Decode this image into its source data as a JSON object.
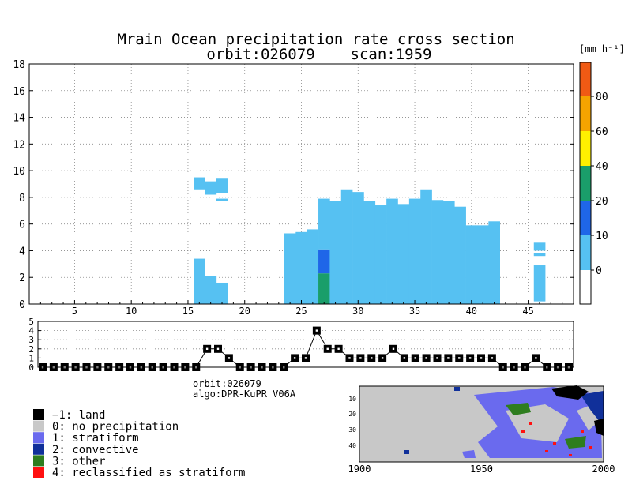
{
  "title_line1": "Mrain Ocean precipitation rate cross section",
  "title_line2_orbit": "orbit:026079",
  "title_line2_scan": "scan:1959",
  "info_orbit": "orbit:026079",
  "info_algo": "algo:DPR-KuPR V06A",
  "colorbar": {
    "unit_label": "[mm h⁻¹]",
    "bins": [
      {
        "from": -10,
        "to": 0,
        "color": "#ffffff"
      },
      {
        "from": 0,
        "to": 10,
        "color": "#56c1f2"
      },
      {
        "from": 10,
        "to": 20,
        "color": "#1f66e8"
      },
      {
        "from": 20,
        "to": 40,
        "color": "#1a9e6a"
      },
      {
        "from": 40,
        "to": 60,
        "color": "#fff000"
      },
      {
        "from": 60,
        "to": 80,
        "color": "#f5a300"
      },
      {
        "from": 80,
        "to": 100,
        "color": "#f05a14"
      }
    ],
    "tick_labels": [
      {
        "value": 0,
        "label": "0"
      },
      {
        "value": 10,
        "label": "10"
      },
      {
        "value": 20,
        "label": "20"
      },
      {
        "value": 40,
        "label": "40"
      },
      {
        "value": 60,
        "label": "60"
      },
      {
        "value": 80,
        "label": "80"
      }
    ]
  },
  "legend": [
    {
      "label": "−1: land",
      "color": "#000000"
    },
    {
      "label": "0: no precipitation",
      "color": "#c8c8c8"
    },
    {
      "label": "1: stratiform",
      "color": "#6a6aee"
    },
    {
      "label": "2: convective",
      "color": "#10309a"
    },
    {
      "label": "3: other",
      "color": "#2e7d1e"
    },
    {
      "label": "4: reclassified as stratiform",
      "color": "#ff1010"
    }
  ],
  "map": {
    "x_tick_labels": [
      "1900",
      "1950",
      "2000"
    ],
    "y_tick_labels": [
      "10",
      "20",
      "30",
      "40"
    ]
  },
  "chart_data": [
    {
      "type": "heatmap",
      "title": "Mrain Ocean precipitation rate cross section",
      "subtitle": "orbit:026079    scan:1959",
      "xlabel": "",
      "ylabel": "",
      "xlim": [
        1,
        49
      ],
      "ylim": [
        0,
        18
      ],
      "x_ticks": [
        5,
        10,
        15,
        20,
        25,
        30,
        35,
        40,
        45
      ],
      "y_ticks": [
        0,
        2,
        4,
        6,
        8,
        10,
        12,
        14,
        16,
        18
      ],
      "grid": true,
      "columns": [
        {
          "ray": 16,
          "segments": [
            {
              "y0": 0,
              "y1": 3.4,
              "c": "light"
            },
            {
              "y0": 8.6,
              "y1": 9.5,
              "c": "light"
            }
          ]
        },
        {
          "ray": 17,
          "segments": [
            {
              "y0": 0,
              "y1": 2.1,
              "c": "light"
            },
            {
              "y0": 8.2,
              "y1": 9.2,
              "c": "light"
            }
          ]
        },
        {
          "ray": 18,
          "segments": [
            {
              "y0": 0,
              "y1": 1.6,
              "c": "light"
            },
            {
              "y0": 7.7,
              "y1": 7.9,
              "c": "light"
            },
            {
              "y0": 8.3,
              "y1": 9.4,
              "c": "light"
            }
          ]
        },
        {
          "ray": 24,
          "segments": [
            {
              "y0": 0,
              "y1": 5.3,
              "c": "light"
            }
          ]
        },
        {
          "ray": 25,
          "segments": [
            {
              "y0": 0,
              "y1": 5.4,
              "c": "light"
            }
          ]
        },
        {
          "ray": 26,
          "segments": [
            {
              "y0": 0,
              "y1": 5.6,
              "c": "light"
            }
          ]
        },
        {
          "ray": 27,
          "segments": [
            {
              "y0": 0,
              "y1": 2.3,
              "c": "green"
            },
            {
              "y0": 2.3,
              "y1": 4.1,
              "c": "blue"
            },
            {
              "y0": 4.1,
              "y1": 7.9,
              "c": "light"
            }
          ]
        },
        {
          "ray": 28,
          "segments": [
            {
              "y0": 0,
              "y1": 7.7,
              "c": "light"
            }
          ]
        },
        {
          "ray": 29,
          "segments": [
            {
              "y0": 0,
              "y1": 8.6,
              "c": "light"
            }
          ]
        },
        {
          "ray": 30,
          "segments": [
            {
              "y0": 0,
              "y1": 8.4,
              "c": "light"
            }
          ]
        },
        {
          "ray": 31,
          "segments": [
            {
              "y0": 0,
              "y1": 7.7,
              "c": "light"
            }
          ]
        },
        {
          "ray": 32,
          "segments": [
            {
              "y0": 0,
              "y1": 7.4,
              "c": "light"
            }
          ]
        },
        {
          "ray": 33,
          "segments": [
            {
              "y0": 0,
              "y1": 7.9,
              "c": "light"
            }
          ]
        },
        {
          "ray": 34,
          "segments": [
            {
              "y0": 0,
              "y1": 7.5,
              "c": "light"
            }
          ]
        },
        {
          "ray": 35,
          "segments": [
            {
              "y0": 0,
              "y1": 7.9,
              "c": "light"
            }
          ]
        },
        {
          "ray": 36,
          "segments": [
            {
              "y0": 0,
              "y1": 8.6,
              "c": "light"
            }
          ]
        },
        {
          "ray": 37,
          "segments": [
            {
              "y0": 0,
              "y1": 7.8,
              "c": "light"
            }
          ]
        },
        {
          "ray": 38,
          "segments": [
            {
              "y0": 0,
              "y1": 7.7,
              "c": "light"
            }
          ]
        },
        {
          "ray": 39,
          "segments": [
            {
              "y0": 0,
              "y1": 7.3,
              "c": "light"
            }
          ]
        },
        {
          "ray": 40,
          "segments": [
            {
              "y0": 0,
              "y1": 5.9,
              "c": "light"
            }
          ]
        },
        {
          "ray": 41,
          "segments": [
            {
              "y0": 0,
              "y1": 5.9,
              "c": "light"
            }
          ]
        },
        {
          "ray": 42,
          "segments": [
            {
              "y0": 0,
              "y1": 6.2,
              "c": "light"
            }
          ]
        },
        {
          "ray": 46,
          "segments": [
            {
              "y0": 0.2,
              "y1": 2.9,
              "c": "light"
            },
            {
              "y0": 3.6,
              "y1": 3.8,
              "c": "light"
            },
            {
              "y0": 4.0,
              "y1": 4.6,
              "c": "light"
            }
          ]
        }
      ]
    },
    {
      "type": "line",
      "title": "",
      "xlabel": "",
      "ylabel": "",
      "ylim": [
        0,
        5
      ],
      "y_ticks": [
        0,
        1,
        2,
        3,
        4,
        5
      ],
      "x": [
        1,
        2,
        3,
        4,
        5,
        6,
        7,
        8,
        9,
        10,
        11,
        12,
        13,
        14,
        15,
        16,
        17,
        18,
        19,
        20,
        21,
        22,
        23,
        24,
        25,
        26,
        27,
        28,
        29,
        30,
        31,
        32,
        33,
        34,
        35,
        36,
        37,
        38,
        39,
        40,
        41,
        42,
        43,
        44,
        45,
        46,
        47,
        48,
        49
      ],
      "values": [
        0,
        0,
        0,
        0,
        0,
        0,
        0,
        0,
        0,
        0,
        0,
        0,
        0,
        0,
        0,
        2,
        2,
        1,
        0,
        0,
        0,
        0,
        0,
        1,
        1,
        4,
        2,
        2,
        1,
        1,
        1,
        1,
        2,
        1,
        1,
        1,
        1,
        1,
        1,
        1,
        1,
        1,
        0,
        0,
        0,
        1,
        0,
        0,
        0
      ]
    }
  ]
}
